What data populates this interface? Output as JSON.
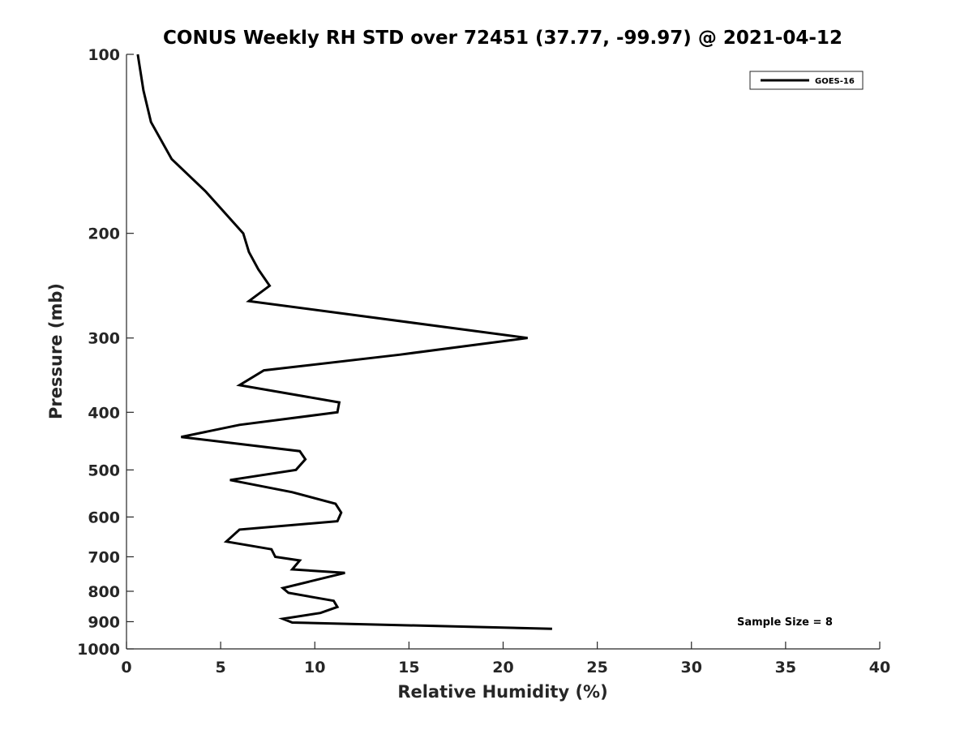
{
  "chart_data": {
    "type": "line",
    "title": "CONUS Weekly RH STD over 72451 (37.77, -99.97) @ 2021-04-12",
    "xlabel": "Relative Humidity (%)",
    "ylabel": "Pressure (mb)",
    "xlim": [
      0,
      40
    ],
    "ylim": [
      100,
      1000
    ],
    "yscale": "log",
    "y_reversed": true,
    "grid": false,
    "legend_position": "top-right",
    "xticks": [
      0,
      5,
      10,
      15,
      20,
      25,
      30,
      35,
      40
    ],
    "yticks": [
      100,
      200,
      300,
      400,
      500,
      600,
      700,
      800,
      900,
      1000
    ],
    "annotation": "Sample Size = 8",
    "series": [
      {
        "name": "GOES-16",
        "color": "#000000",
        "x": [
          0.6,
          0.9,
          1.3,
          2.4,
          4.2,
          6.2,
          6.5,
          7.0,
          7.6,
          6.5,
          21.3,
          14.5,
          7.3,
          6.0,
          11.3,
          11.2,
          6.0,
          2.9,
          9.2,
          9.5,
          9.0,
          5.5,
          8.8,
          11.1,
          11.4,
          11.2,
          6.0,
          5.3,
          7.7,
          7.9,
          9.2,
          8.8,
          11.6,
          8.3,
          8.6,
          11.0,
          11.2,
          10.3,
          8.3,
          8.8,
          22.6
        ],
        "y": [
          100,
          115,
          130,
          150,
          170,
          200,
          215,
          230,
          245,
          260,
          300,
          320,
          340,
          360,
          385,
          400,
          420,
          440,
          465,
          480,
          500,
          520,
          545,
          570,
          590,
          610,
          630,
          660,
          680,
          700,
          710,
          735,
          745,
          790,
          805,
          830,
          850,
          870,
          890,
          903,
          925
        ]
      }
    ]
  }
}
